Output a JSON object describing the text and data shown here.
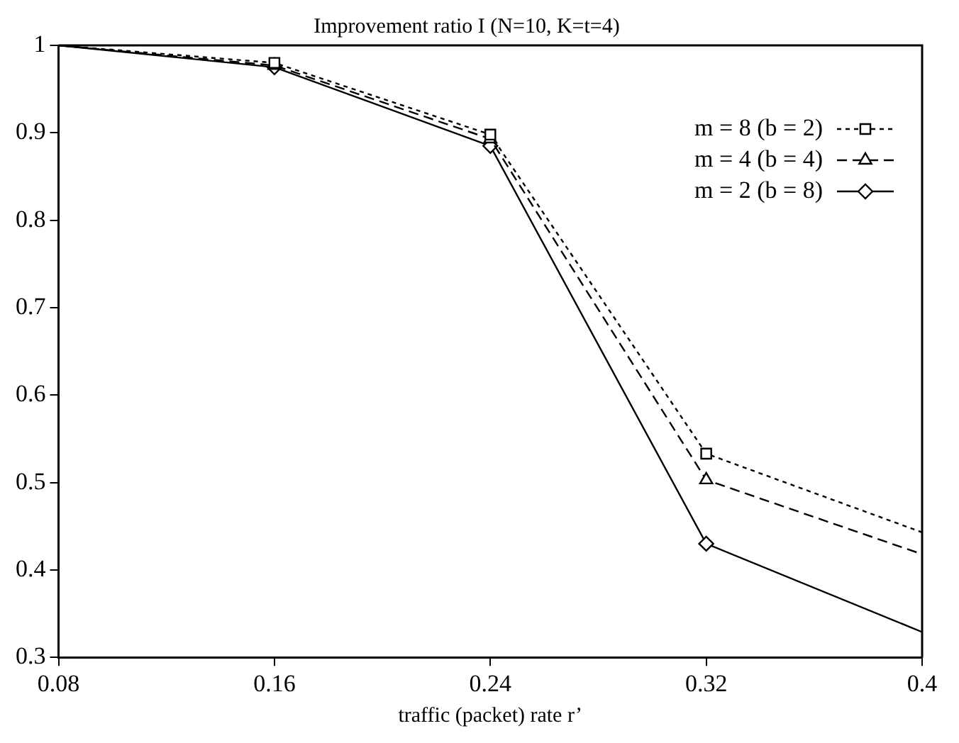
{
  "chart_data": {
    "type": "line",
    "title": "Improvement ratio I (N=10, K=t=4)",
    "xlabel": "traffic (packet) rate r’",
    "x": [
      0.08,
      0.16,
      0.24,
      0.32,
      0.4
    ],
    "series": [
      {
        "name": "m = 8 (b = 2)",
        "color": "#000000",
        "marker": "square",
        "line_style": "dotted",
        "values": [
          1,
          0.98,
          0.898,
          0.533,
          0.443
        ]
      },
      {
        "name": "m = 4 (b = 4)",
        "color": "#000000",
        "marker": "triangle",
        "line_style": "dashed",
        "values": [
          1,
          0.977,
          0.893,
          0.503,
          0.418
        ]
      },
      {
        "name": "m = 2 (b = 8)",
        "color": "#000000",
        "marker": "diamond",
        "line_style": "solid",
        "values": [
          1,
          0.975,
          0.885,
          0.43,
          0.329
        ]
      }
    ],
    "xlim": [
      0.08,
      0.4
    ],
    "xticks": [
      0.08,
      0.16,
      0.24,
      0.32,
      0.4
    ],
    "ylim": [
      0.3,
      1
    ],
    "yticks": [
      0.3,
      0.4,
      0.5,
      0.6,
      0.7,
      0.8,
      0.9,
      1
    ],
    "grid": false,
    "legend": "top right"
  }
}
